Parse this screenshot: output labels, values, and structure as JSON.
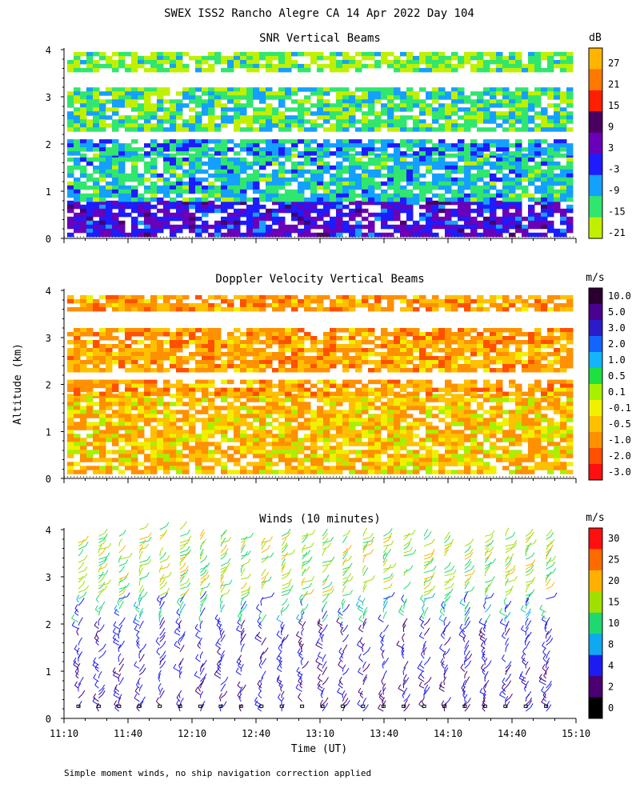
{
  "title": "SWEX ISS2 Rancho Alegre CA  14 Apr 2022 Day 104",
  "ylabel": "Altitude (km)",
  "xlabel": "Time (UT)",
  "footnote": "Simple moment winds, no ship navigation correction applied",
  "x_ticks": [
    "11:10",
    "11:40",
    "12:10",
    "12:40",
    "13:10",
    "13:40",
    "14:10",
    "14:40",
    "15:10"
  ],
  "y_ticks": [
    "0",
    "1",
    "2",
    "3",
    "4"
  ],
  "chart_data": [
    {
      "type": "heatmap",
      "title": "SNR Vertical Beams",
      "unit": "dB",
      "xlim": [
        "11:10",
        "15:10"
      ],
      "ylim": [
        0,
        4
      ],
      "colorbar_labels": [
        "27",
        "21",
        "15",
        "9",
        "3",
        "-3",
        "-9",
        "-15",
        "-21"
      ],
      "colorbar_colors": [
        "#ffb400",
        "#ff7800",
        "#ff1e00",
        "#4a0060",
        "#6a00b8",
        "#1c1cff",
        "#14a0ff",
        "#30e66e",
        "#c0f000"
      ],
      "layers": [
        {
          "ymin": 0.1,
          "ymax": 0.8,
          "snr_db": 0
        },
        {
          "ymin": 0.8,
          "ymax": 1.8,
          "snr_db": -12
        },
        {
          "ymin": 1.8,
          "ymax": 2.1,
          "snr_db": -9
        },
        {
          "ymin": 2.3,
          "ymax": 3.2,
          "snr_db": -15
        },
        {
          "ymin": 3.6,
          "ymax": 3.95,
          "snr_db": -18
        }
      ]
    },
    {
      "type": "heatmap",
      "title": "Doppler Velocity Vertical Beams",
      "unit": "m/s",
      "xlim": [
        "11:10",
        "15:10"
      ],
      "ylim": [
        0,
        4
      ],
      "colorbar_labels": [
        "10.0",
        "5.0",
        "3.0",
        "2.0",
        "1.0",
        "0.5",
        "0.1",
        "-0.1",
        "-0.5",
        "-1.0",
        "-2.0",
        "-3.0"
      ],
      "colorbar_colors": [
        "#2a0030",
        "#4a0090",
        "#2a1cc8",
        "#1464ff",
        "#14b4ff",
        "#20e040",
        "#a8f000",
        "#f0f000",
        "#ffc000",
        "#ff9000",
        "#ff5000",
        "#ff1010"
      ],
      "layers": [
        {
          "ymin": 0.1,
          "ymax": 1.8,
          "velocity_ms": -0.3
        },
        {
          "ymin": 1.8,
          "ymax": 2.1,
          "velocity_ms": -0.6
        },
        {
          "ymin": 2.3,
          "ymax": 3.2,
          "velocity_ms": -0.6
        },
        {
          "ymin": 3.6,
          "ymax": 3.9,
          "velocity_ms": -0.6
        }
      ]
    },
    {
      "type": "wind_barbs",
      "title": "Winds (10 minutes)",
      "unit": "m/s",
      "interval_minutes": 10,
      "xlim": [
        "11:10",
        "15:10"
      ],
      "ylim": [
        0,
        4
      ],
      "colorbar_labels": [
        "30",
        "25",
        "20",
        "15",
        "10",
        "8",
        "4",
        "2",
        "0"
      ],
      "colorbar_colors": [
        "#ff1010",
        "#ff6a00",
        "#ffb000",
        "#a0e000",
        "#20d870",
        "#10a8f0",
        "#1c1cf0",
        "#4a0070",
        "#000000"
      ],
      "profiles": [
        {
          "layer": "0-1 km",
          "speed_ms": 3
        },
        {
          "layer": "1-2 km",
          "speed_ms": 5
        },
        {
          "layer": "2-2.6 km",
          "speed_ms": 9
        },
        {
          "layer": "2.6-4 km",
          "speed_ms": 15
        }
      ]
    }
  ]
}
